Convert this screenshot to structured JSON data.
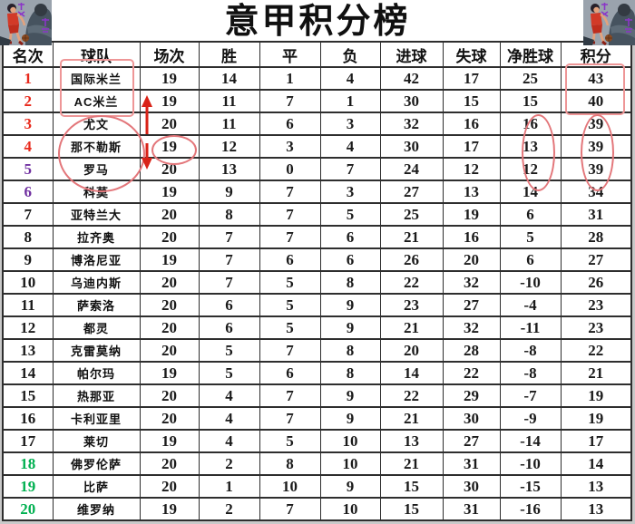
{
  "title": "意甲积分榜",
  "rank_colors": {
    "red": "#e8291c",
    "purple": "#7030a0",
    "black": "#1a1a1a",
    "green": "#00b050"
  },
  "annotation_colors": {
    "box": "#ee9697",
    "ellipse": "#e3767a",
    "arrow": "#d92318"
  },
  "corner_art": "basketball-player-artwork",
  "chart_data": {
    "type": "table",
    "title": "意甲积分榜",
    "columns": [
      "名次",
      "球队",
      "场次",
      "胜",
      "平",
      "负",
      "进球",
      "失球",
      "净胜球",
      "积分"
    ],
    "rows": [
      {
        "color": "red",
        "cells": [
          "1",
          "国际米兰",
          "19",
          "14",
          "1",
          "4",
          "42",
          "17",
          "25",
          "43"
        ]
      },
      {
        "color": "red",
        "cells": [
          "2",
          "AC米兰",
          "19",
          "11",
          "7",
          "1",
          "30",
          "15",
          "15",
          "40"
        ]
      },
      {
        "color": "red",
        "cells": [
          "3",
          "尤文",
          "20",
          "11",
          "6",
          "3",
          "32",
          "16",
          "16",
          "39"
        ]
      },
      {
        "color": "red",
        "cells": [
          "4",
          "那不勒斯",
          "19",
          "12",
          "3",
          "4",
          "30",
          "17",
          "13",
          "39"
        ]
      },
      {
        "color": "purple",
        "cells": [
          "5",
          "罗马",
          "20",
          "13",
          "0",
          "7",
          "24",
          "12",
          "12",
          "39"
        ]
      },
      {
        "color": "purple",
        "cells": [
          "6",
          "科莫",
          "19",
          "9",
          "7",
          "3",
          "27",
          "13",
          "14",
          "34"
        ]
      },
      {
        "color": "black",
        "cells": [
          "7",
          "亚特兰大",
          "20",
          "8",
          "7",
          "5",
          "25",
          "19",
          "6",
          "31"
        ]
      },
      {
        "color": "black",
        "cells": [
          "8",
          "拉齐奥",
          "20",
          "7",
          "7",
          "6",
          "21",
          "16",
          "5",
          "28"
        ]
      },
      {
        "color": "black",
        "cells": [
          "9",
          "博洛尼亚",
          "19",
          "7",
          "6",
          "6",
          "26",
          "20",
          "6",
          "27"
        ]
      },
      {
        "color": "black",
        "cells": [
          "10",
          "乌迪内斯",
          "20",
          "7",
          "5",
          "8",
          "22",
          "32",
          "-10",
          "26"
        ]
      },
      {
        "color": "black",
        "cells": [
          "11",
          "萨索洛",
          "20",
          "6",
          "5",
          "9",
          "23",
          "27",
          "-4",
          "23"
        ]
      },
      {
        "color": "black",
        "cells": [
          "12",
          "都灵",
          "20",
          "6",
          "5",
          "9",
          "21",
          "32",
          "-11",
          "23"
        ]
      },
      {
        "color": "black",
        "cells": [
          "13",
          "克雷莫纳",
          "20",
          "5",
          "7",
          "8",
          "20",
          "28",
          "-8",
          "22"
        ]
      },
      {
        "color": "black",
        "cells": [
          "14",
          "帕尔玛",
          "19",
          "5",
          "6",
          "8",
          "14",
          "22",
          "-8",
          "21"
        ]
      },
      {
        "color": "black",
        "cells": [
          "15",
          "热那亚",
          "20",
          "4",
          "7",
          "9",
          "22",
          "29",
          "-7",
          "19"
        ]
      },
      {
        "color": "black",
        "cells": [
          "16",
          "卡利亚里",
          "20",
          "4",
          "7",
          "9",
          "21",
          "30",
          "-9",
          "19"
        ]
      },
      {
        "color": "black",
        "cells": [
          "17",
          "莱切",
          "19",
          "4",
          "5",
          "10",
          "13",
          "27",
          "-14",
          "17"
        ]
      },
      {
        "color": "green",
        "cells": [
          "18",
          "佛罗伦萨",
          "20",
          "2",
          "8",
          "10",
          "21",
          "31",
          "-10",
          "14"
        ]
      },
      {
        "color": "green",
        "cells": [
          "19",
          "比萨",
          "20",
          "1",
          "10",
          "9",
          "15",
          "30",
          "-15",
          "13"
        ]
      },
      {
        "color": "green",
        "cells": [
          "20",
          "维罗纳",
          "19",
          "2",
          "7",
          "10",
          "15",
          "31",
          "-16",
          "13"
        ]
      }
    ]
  },
  "annotations": [
    {
      "name": "box-top-two-teams",
      "type": "rect",
      "around": "国际米兰、AC米兰"
    },
    {
      "name": "box-top-two-points",
      "type": "rect",
      "around": "43、40"
    },
    {
      "name": "ellipse-chasing-teams",
      "type": "ellipse",
      "around": "尤文、那不勒斯、罗马"
    },
    {
      "name": "ellipse-napoli-played",
      "type": "ellipse",
      "around": "19"
    },
    {
      "name": "arrow-up",
      "type": "arrow",
      "direction": "up"
    },
    {
      "name": "arrow-down",
      "type": "arrow",
      "direction": "down"
    },
    {
      "name": "ellipse-goal-diff-3-5",
      "type": "ellipse",
      "around": "16、13、12"
    },
    {
      "name": "ellipse-points-3-5",
      "type": "ellipse",
      "around": "39、39、39"
    }
  ]
}
